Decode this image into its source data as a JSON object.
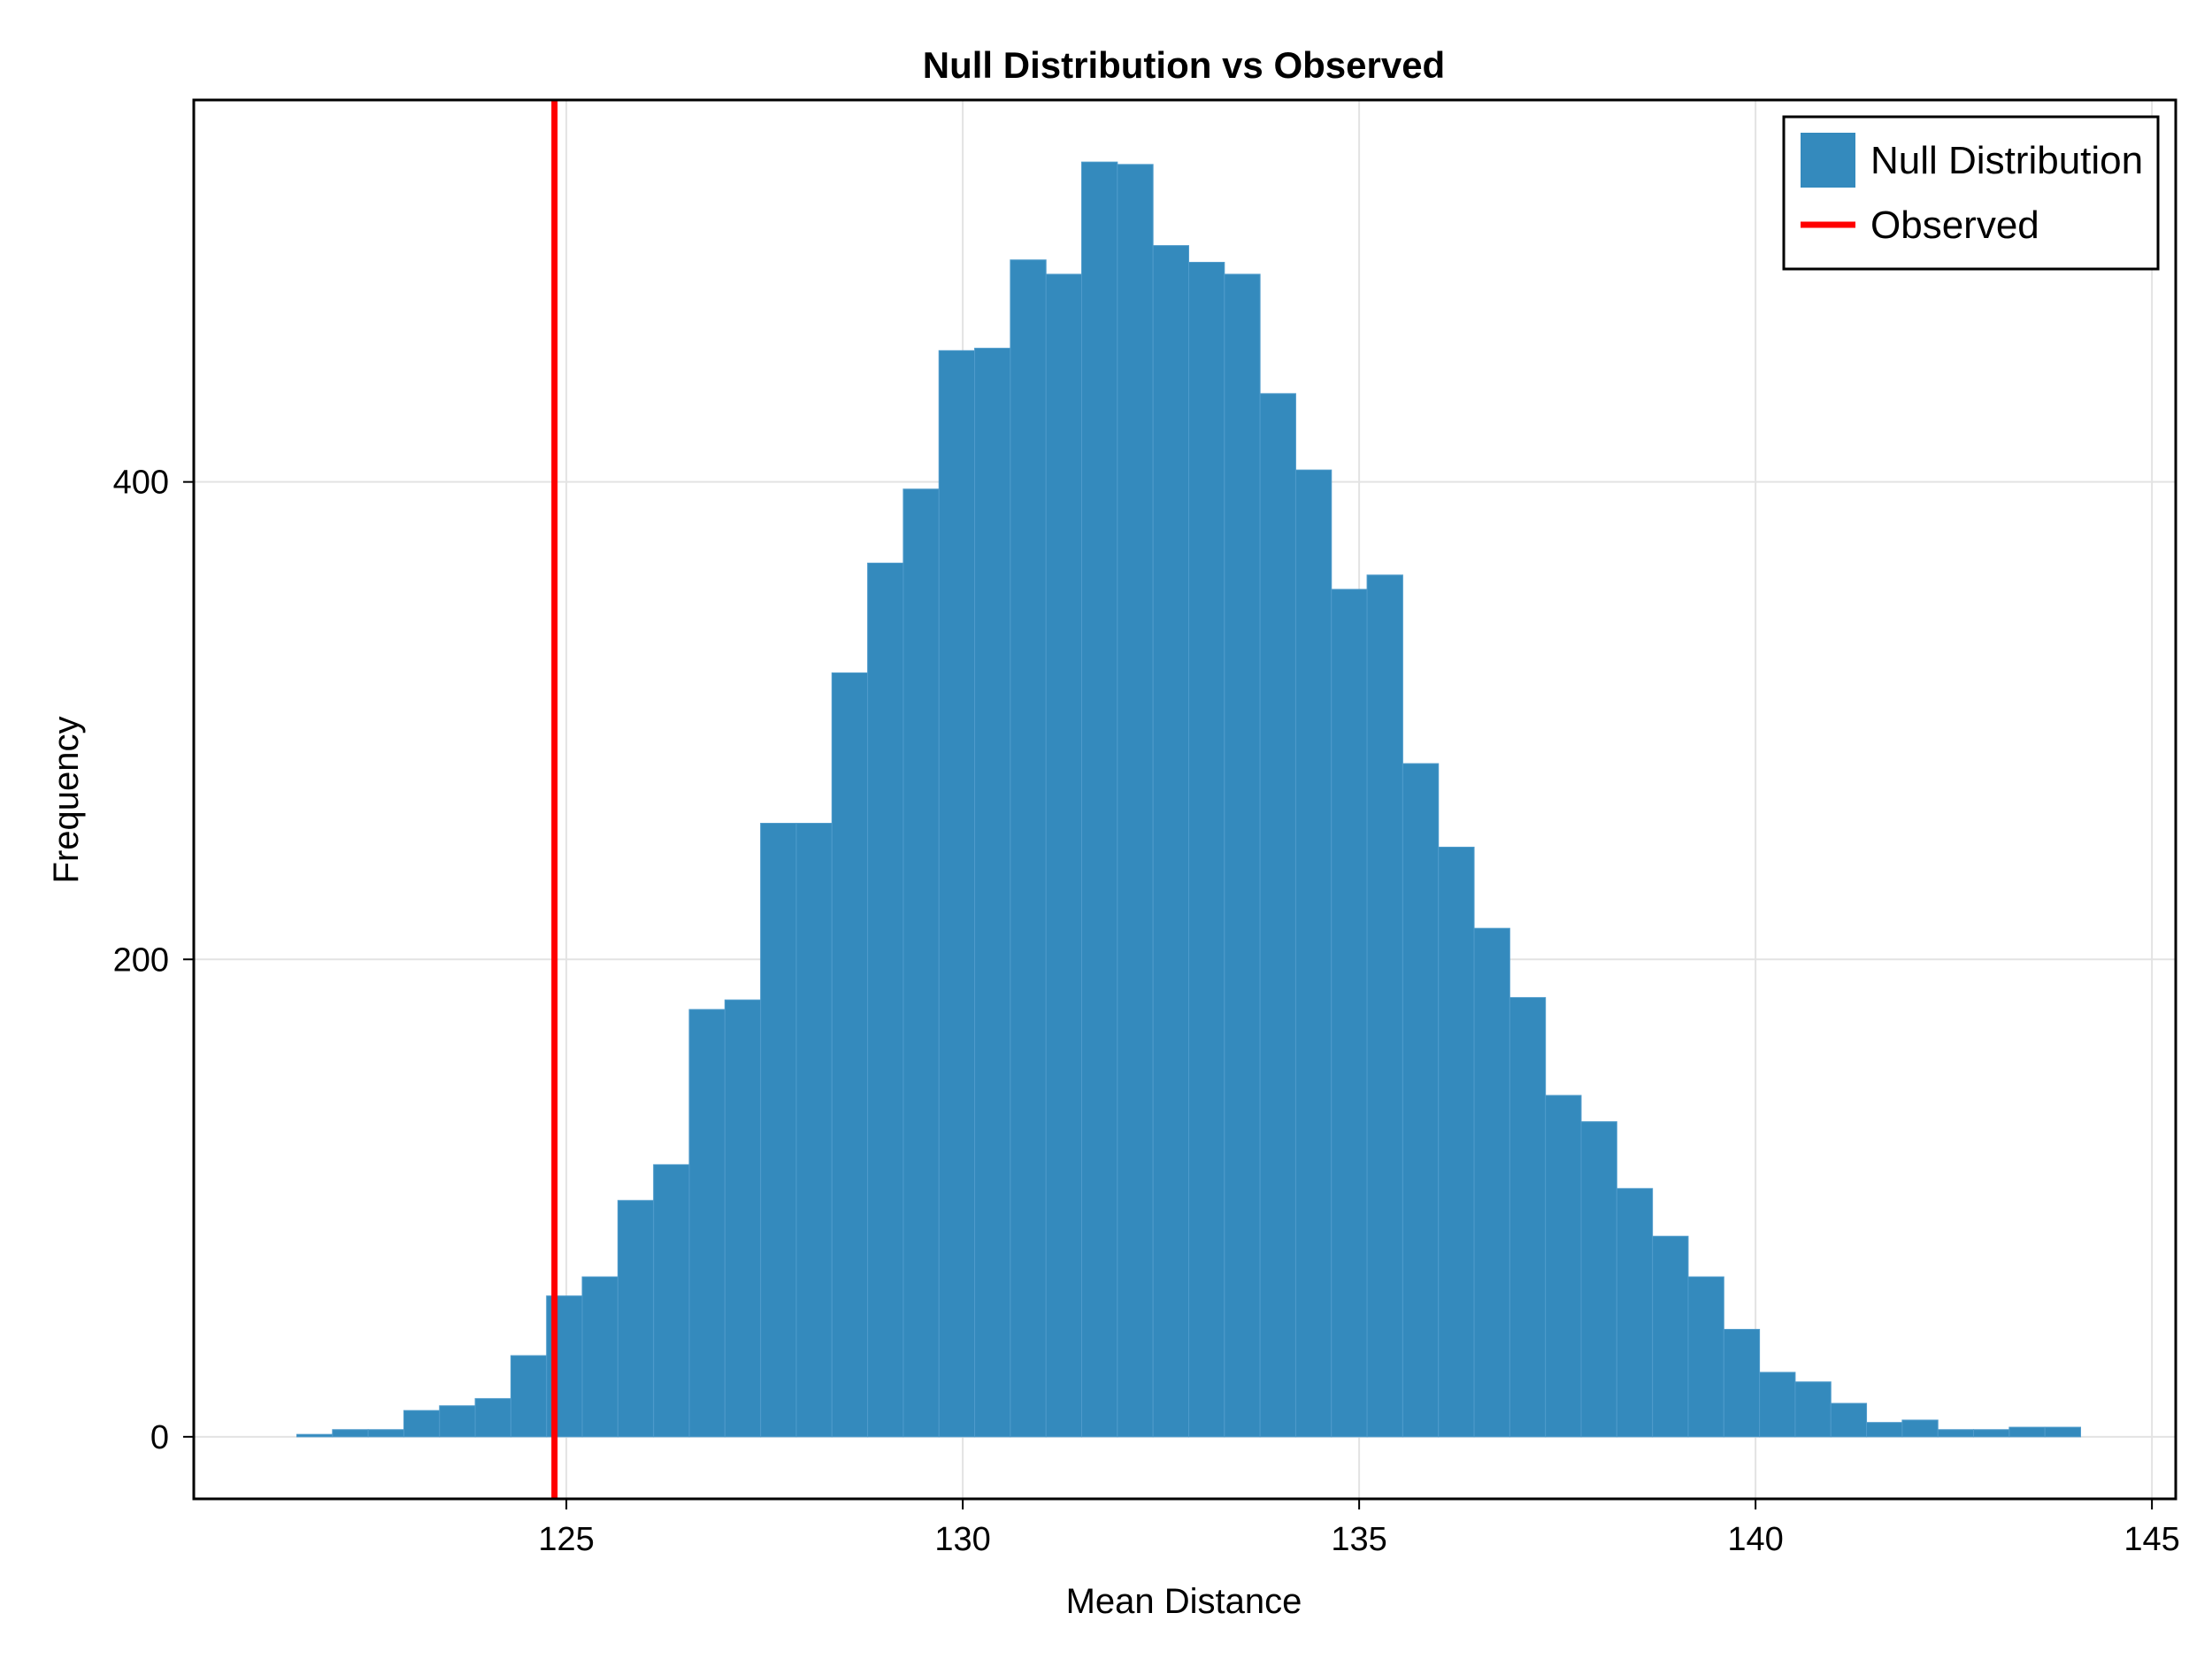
{
  "chart_data": {
    "type": "bar",
    "title": "Null Distribution vs Observed",
    "xlabel": "Mean Distance",
    "ylabel": "Frequency",
    "xlim": [
      120.3,
      145.3
    ],
    "ylim": [
      -26,
      560
    ],
    "xticks": [
      125,
      130,
      135,
      140,
      145
    ],
    "yticks": [
      0,
      200,
      400
    ],
    "grid": true,
    "legend_position": "top-right",
    "bin_start": 121.6,
    "bin_width": 0.45,
    "series": [
      {
        "name": "Null Distribution",
        "kind": "histogram",
        "color": "#348ABD",
        "counts": [
          1,
          3,
          3,
          11,
          13,
          16,
          34,
          59,
          67,
          99,
          114,
          179,
          183,
          257,
          257,
          320,
          366,
          397,
          455,
          456,
          493,
          487,
          534,
          533,
          499,
          492,
          487,
          437,
          405,
          355,
          361,
          282,
          247,
          213,
          184,
          143,
          132,
          104,
          84,
          67,
          45,
          27,
          23,
          14,
          6,
          7,
          3,
          3,
          4,
          4
        ]
      },
      {
        "name": "Observed",
        "kind": "vline",
        "color": "#FF0000",
        "x": 124.85
      }
    ]
  }
}
